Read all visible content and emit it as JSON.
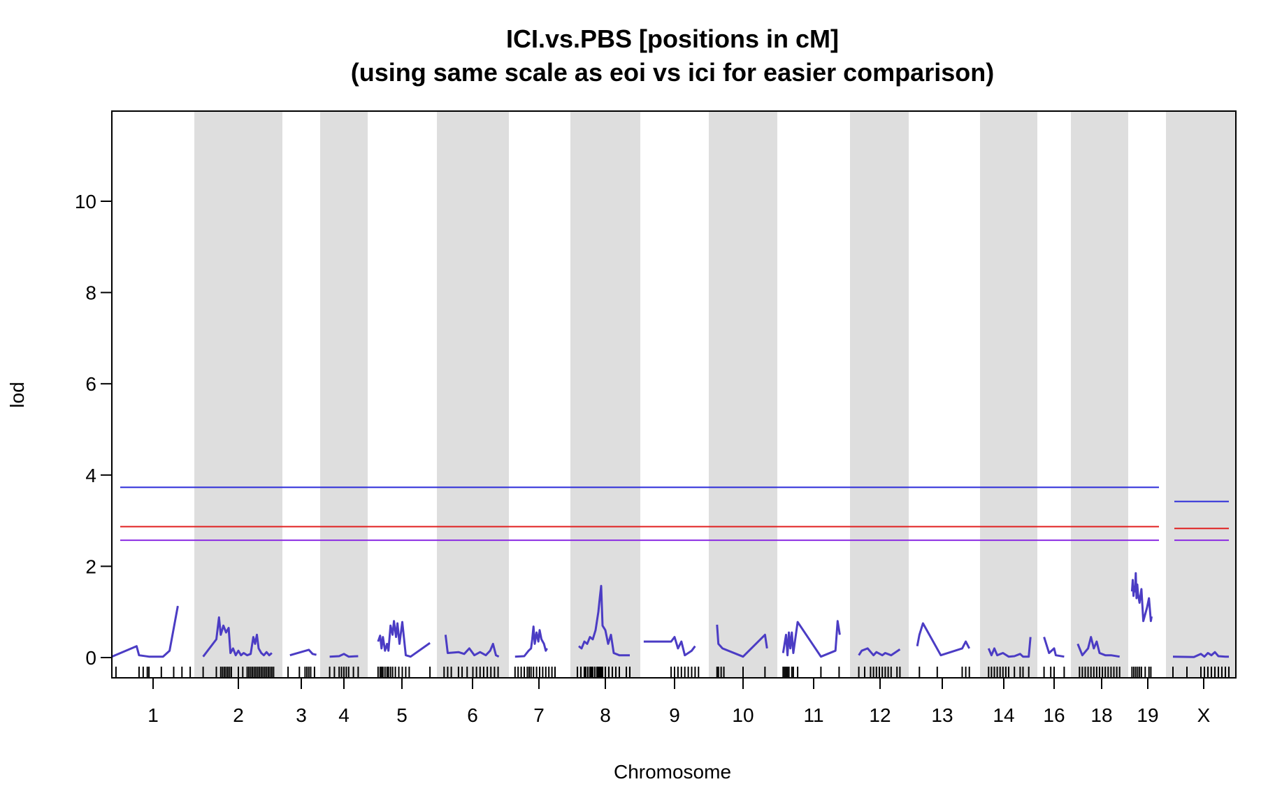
{
  "chart_data": {
    "type": "line",
    "title": "ICI.vs.PBS [positions in cM]",
    "subtitle": "(using same scale as eoi vs ici for easier comparison)",
    "xlabel": "Chromosome",
    "ylabel": "lod",
    "ylim": [
      0,
      11.8
    ],
    "yticks": [
      0,
      2,
      4,
      6,
      8,
      10
    ],
    "grid": false,
    "legend": "none",
    "colors": {
      "lod_curve": "#4b3cc4",
      "threshold_blue": "#2b2bd9",
      "threshold_red": "#e02020",
      "threshold_purple": "#8a2be2",
      "band_gray": "#dedede",
      "frame": "#000000"
    },
    "chromosomes": [
      {
        "label": "1",
        "shaded": false,
        "curve": [
          [
            0,
            0.02
          ],
          [
            0.3,
            0.25
          ],
          [
            0.33,
            0.05
          ],
          [
            0.45,
            0.02
          ],
          [
            0.62,
            0.02
          ],
          [
            0.7,
            0.15
          ],
          [
            0.8,
            1.13
          ]
        ],
        "markers": [
          0.05,
          0.33,
          0.38,
          0.43,
          0.45,
          0.6,
          0.75,
          0.85,
          0.95
        ]
      },
      {
        "label": "2",
        "shaded": true,
        "curve": [
          [
            0.1,
            0.02
          ],
          [
            0.25,
            0.4
          ],
          [
            0.28,
            0.88
          ],
          [
            0.3,
            0.5
          ],
          [
            0.33,
            0.7
          ],
          [
            0.36,
            0.55
          ],
          [
            0.39,
            0.65
          ],
          [
            0.41,
            0.1
          ],
          [
            0.44,
            0.2
          ],
          [
            0.47,
            0.05
          ],
          [
            0.5,
            0.15
          ],
          [
            0.53,
            0.05
          ],
          [
            0.56,
            0.1
          ],
          [
            0.6,
            0.05
          ],
          [
            0.64,
            0.08
          ],
          [
            0.67,
            0.45
          ],
          [
            0.69,
            0.3
          ],
          [
            0.71,
            0.5
          ],
          [
            0.73,
            0.2
          ],
          [
            0.76,
            0.1
          ],
          [
            0.79,
            0.05
          ],
          [
            0.82,
            0.12
          ],
          [
            0.85,
            0.05
          ],
          [
            0.88,
            0.1
          ]
        ],
        "markers": [
          0.1,
          0.25,
          0.3,
          0.32,
          0.34,
          0.36,
          0.38,
          0.4,
          0.42,
          0.5,
          0.55,
          0.6,
          0.62,
          0.64,
          0.66,
          0.68,
          0.7,
          0.72,
          0.74,
          0.76,
          0.78,
          0.8,
          0.82,
          0.84,
          0.86,
          0.88,
          0.9
        ]
      },
      {
        "label": "3",
        "shaded": false,
        "curve": [
          [
            0.2,
            0.05
          ],
          [
            0.7,
            0.17
          ],
          [
            0.8,
            0.08
          ],
          [
            0.9,
            0.06
          ]
        ],
        "markers": [
          0.15,
          0.45,
          0.6,
          0.65,
          0.7,
          0.75,
          0.85
        ]
      },
      {
        "label": "4",
        "shaded": true,
        "curve": [
          [
            0.2,
            0.02
          ],
          [
            0.4,
            0.03
          ],
          [
            0.5,
            0.08
          ],
          [
            0.6,
            0.02
          ],
          [
            0.8,
            0.03
          ]
        ],
        "markers": [
          0.2,
          0.3,
          0.4,
          0.45,
          0.5,
          0.55,
          0.6,
          0.7,
          0.8
        ]
      },
      {
        "label": "5",
        "shaded": false,
        "curve": [
          [
            0.15,
            0.35
          ],
          [
            0.18,
            0.48
          ],
          [
            0.2,
            0.2
          ],
          [
            0.22,
            0.45
          ],
          [
            0.25,
            0.15
          ],
          [
            0.28,
            0.3
          ],
          [
            0.3,
            0.15
          ],
          [
            0.33,
            0.7
          ],
          [
            0.36,
            0.5
          ],
          [
            0.38,
            0.8
          ],
          [
            0.41,
            0.45
          ],
          [
            0.43,
            0.75
          ],
          [
            0.46,
            0.3
          ],
          [
            0.5,
            0.78
          ],
          [
            0.55,
            0.05
          ],
          [
            0.62,
            0.02
          ],
          [
            0.9,
            0.32
          ]
        ],
        "markers": [
          0.15,
          0.18,
          0.2,
          0.22,
          0.25,
          0.28,
          0.3,
          0.33,
          0.36,
          0.4,
          0.45,
          0.5,
          0.55,
          0.6,
          0.9
        ]
      },
      {
        "label": "6",
        "shaded": true,
        "curve": [
          [
            0.12,
            0.5
          ],
          [
            0.15,
            0.1
          ],
          [
            0.3,
            0.12
          ],
          [
            0.38,
            0.08
          ],
          [
            0.45,
            0.2
          ],
          [
            0.52,
            0.05
          ],
          [
            0.6,
            0.12
          ],
          [
            0.68,
            0.05
          ],
          [
            0.74,
            0.15
          ],
          [
            0.78,
            0.3
          ],
          [
            0.82,
            0.05
          ],
          [
            0.86,
            0.02
          ]
        ],
        "markers": [
          0.1,
          0.15,
          0.2,
          0.3,
          0.35,
          0.42,
          0.5,
          0.55,
          0.6,
          0.65,
          0.7,
          0.75,
          0.8,
          0.85
        ]
      },
      {
        "label": "7",
        "shaded": false,
        "curve": [
          [
            0.1,
            0.02
          ],
          [
            0.25,
            0.03
          ],
          [
            0.32,
            0.15
          ],
          [
            0.36,
            0.2
          ],
          [
            0.38,
            0.4
          ],
          [
            0.4,
            0.68
          ],
          [
            0.42,
            0.3
          ],
          [
            0.45,
            0.55
          ],
          [
            0.48,
            0.35
          ],
          [
            0.5,
            0.6
          ],
          [
            0.53,
            0.4
          ],
          [
            0.57,
            0.3
          ],
          [
            0.6,
            0.15
          ],
          [
            0.62,
            0.2
          ]
        ],
        "markers": [
          0.1,
          0.15,
          0.2,
          0.25,
          0.3,
          0.33,
          0.36,
          0.4,
          0.45,
          0.5,
          0.55,
          0.6,
          0.65,
          0.7,
          0.75
        ]
      },
      {
        "label": "8",
        "shaded": true,
        "curve": [
          [
            0.12,
            0.25
          ],
          [
            0.16,
            0.2
          ],
          [
            0.2,
            0.35
          ],
          [
            0.24,
            0.3
          ],
          [
            0.28,
            0.45
          ],
          [
            0.32,
            0.4
          ],
          [
            0.36,
            0.6
          ],
          [
            0.4,
            1.0
          ],
          [
            0.42,
            1.3
          ],
          [
            0.44,
            1.57
          ],
          [
            0.46,
            0.7
          ],
          [
            0.5,
            0.6
          ],
          [
            0.54,
            0.3
          ],
          [
            0.58,
            0.5
          ],
          [
            0.62,
            0.1
          ],
          [
            0.7,
            0.05
          ],
          [
            0.85,
            0.05
          ]
        ],
        "markers": [
          0.1,
          0.15,
          0.2,
          0.22,
          0.25,
          0.28,
          0.3,
          0.32,
          0.35,
          0.38,
          0.4,
          0.42,
          0.44,
          0.46,
          0.5,
          0.55,
          0.6,
          0.65,
          0.7,
          0.8,
          0.85
        ]
      },
      {
        "label": "9",
        "shaded": false,
        "curve": [
          [
            0.05,
            0.35
          ],
          [
            0.45,
            0.35
          ],
          [
            0.5,
            0.45
          ],
          [
            0.55,
            0.2
          ],
          [
            0.6,
            0.35
          ],
          [
            0.65,
            0.05
          ],
          [
            0.75,
            0.15
          ],
          [
            0.8,
            0.25
          ]
        ],
        "markers": [
          0.45,
          0.5,
          0.55,
          0.6,
          0.65,
          0.7,
          0.75,
          0.8,
          0.85
        ]
      },
      {
        "label": "10",
        "shaded": true,
        "curve": [
          [
            0.12,
            0.72
          ],
          [
            0.14,
            0.3
          ],
          [
            0.2,
            0.2
          ],
          [
            0.5,
            0.02
          ],
          [
            0.82,
            0.5
          ],
          [
            0.85,
            0.2
          ]
        ],
        "markers": [
          0.12,
          0.14,
          0.18,
          0.22,
          0.5,
          0.82
        ]
      },
      {
        "label": "11",
        "shaded": false,
        "curve": [
          [
            0.08,
            0.1
          ],
          [
            0.12,
            0.5
          ],
          [
            0.14,
            0.05
          ],
          [
            0.16,
            0.55
          ],
          [
            0.18,
            0.2
          ],
          [
            0.2,
            0.55
          ],
          [
            0.22,
            0.1
          ],
          [
            0.28,
            0.78
          ],
          [
            0.6,
            0.02
          ],
          [
            0.8,
            0.15
          ],
          [
            0.83,
            0.8
          ],
          [
            0.86,
            0.5
          ]
        ],
        "markers": [
          0.08,
          0.1,
          0.12,
          0.14,
          0.16,
          0.2,
          0.22,
          0.28,
          0.6,
          0.85
        ]
      },
      {
        "label": "12",
        "shaded": true,
        "curve": [
          [
            0.15,
            0.05
          ],
          [
            0.2,
            0.15
          ],
          [
            0.3,
            0.2
          ],
          [
            0.4,
            0.05
          ],
          [
            0.45,
            0.12
          ],
          [
            0.55,
            0.05
          ],
          [
            0.6,
            0.1
          ],
          [
            0.7,
            0.05
          ],
          [
            0.85,
            0.18
          ]
        ],
        "markers": [
          0.15,
          0.25,
          0.35,
          0.4,
          0.45,
          0.5,
          0.55,
          0.6,
          0.65,
          0.7,
          0.8,
          0.85
        ]
      },
      {
        "label": "13",
        "shaded": false,
        "curve": [
          [
            0.12,
            0.25
          ],
          [
            0.15,
            0.5
          ],
          [
            0.2,
            0.75
          ],
          [
            0.45,
            0.05
          ],
          [
            0.75,
            0.2
          ],
          [
            0.8,
            0.35
          ],
          [
            0.85,
            0.2
          ]
        ],
        "markers": [
          0.15,
          0.4,
          0.75,
          0.8,
          0.85
        ]
      },
      {
        "label": "14",
        "shaded": true,
        "curve": [
          [
            0.15,
            0.2
          ],
          [
            0.2,
            0.05
          ],
          [
            0.25,
            0.2
          ],
          [
            0.3,
            0.05
          ],
          [
            0.4,
            0.1
          ],
          [
            0.5,
            0.02
          ],
          [
            0.6,
            0.03
          ],
          [
            0.7,
            0.08
          ],
          [
            0.75,
            0.02
          ],
          [
            0.85,
            0.02
          ],
          [
            0.88,
            0.45
          ]
        ],
        "markers": [
          0.15,
          0.2,
          0.25,
          0.3,
          0.35,
          0.4,
          0.45,
          0.5,
          0.6,
          0.7,
          0.75,
          0.85
        ]
      },
      {
        "label": "16",
        "shaded": false,
        "curve": [
          [
            0.2,
            0.45
          ],
          [
            0.35,
            0.1
          ],
          [
            0.5,
            0.2
          ],
          [
            0.55,
            0.05
          ],
          [
            0.8,
            0.02
          ]
        ],
        "markers": [
          0.2,
          0.4,
          0.5,
          0.8
        ]
      },
      {
        "label": "18",
        "shaded": true,
        "curve": [
          [
            0.12,
            0.3
          ],
          [
            0.2,
            0.05
          ],
          [
            0.3,
            0.2
          ],
          [
            0.35,
            0.45
          ],
          [
            0.4,
            0.2
          ],
          [
            0.45,
            0.35
          ],
          [
            0.5,
            0.1
          ],
          [
            0.6,
            0.05
          ],
          [
            0.7,
            0.05
          ],
          [
            0.85,
            0.02
          ]
        ],
        "markers": [
          0.15,
          0.2,
          0.25,
          0.3,
          0.35,
          0.4,
          0.45,
          0.5,
          0.55,
          0.6,
          0.65,
          0.7,
          0.75,
          0.8,
          0.85
        ]
      },
      {
        "label": "19",
        "shaded": false,
        "curve": [
          [
            0.1,
            1.45
          ],
          [
            0.12,
            1.7
          ],
          [
            0.14,
            1.35
          ],
          [
            0.16,
            1.55
          ],
          [
            0.18,
            1.45
          ],
          [
            0.2,
            1.85
          ],
          [
            0.22,
            1.3
          ],
          [
            0.24,
            1.6
          ],
          [
            0.26,
            1.4
          ],
          [
            0.3,
            1.2
          ],
          [
            0.35,
            1.5
          ],
          [
            0.4,
            0.8
          ],
          [
            0.5,
            1.1
          ],
          [
            0.55,
            1.3
          ],
          [
            0.6,
            0.8
          ],
          [
            0.62,
            0.9
          ]
        ],
        "markers": [
          0.1,
          0.15,
          0.2,
          0.25,
          0.3,
          0.35,
          0.45,
          0.55,
          0.6
        ]
      },
      {
        "label": "X",
        "shaded": true,
        "curve": [
          [
            0.1,
            0.02
          ],
          [
            0.4,
            0.01
          ],
          [
            0.5,
            0.08
          ],
          [
            0.55,
            0.02
          ],
          [
            0.6,
            0.1
          ],
          [
            0.65,
            0.05
          ],
          [
            0.7,
            0.12
          ],
          [
            0.75,
            0.03
          ],
          [
            0.85,
            0.02
          ],
          [
            0.9,
            0.02
          ]
        ],
        "markers": [
          0.1,
          0.3,
          0.5,
          0.55,
          0.6,
          0.65,
          0.7,
          0.75,
          0.8,
          0.85,
          0.9
        ]
      }
    ],
    "thresholds": {
      "autosomes": {
        "blue": 3.73,
        "red": 2.87,
        "purple": 2.57
      },
      "X": {
        "blue": 3.42,
        "red": 2.83,
        "purple": 2.57
      }
    }
  }
}
